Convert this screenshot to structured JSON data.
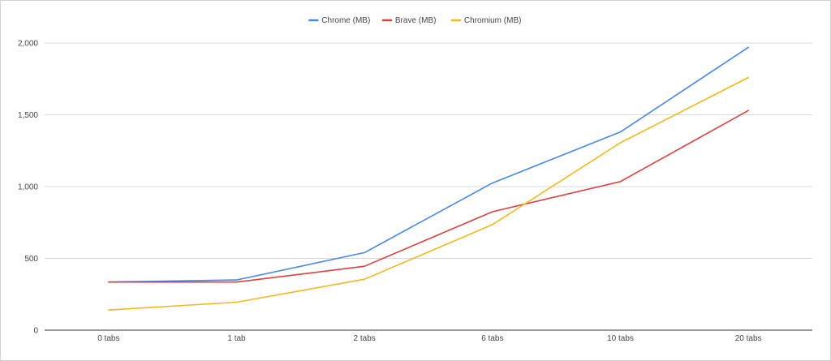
{
  "chart_data": {
    "type": "line",
    "categories": [
      "0 tabs",
      "1 tab",
      "2 tabs",
      "6 tabs",
      "10 tabs",
      "20 tabs"
    ],
    "series": [
      {
        "name": "Chrome (MB)",
        "color": "#4a86e8",
        "values": [
          335,
          350,
          540,
          1025,
          1380,
          1970
        ]
      },
      {
        "name": "Brave (MB)",
        "color": "#d9413f",
        "values": [
          335,
          335,
          445,
          825,
          1035,
          1530
        ]
      },
      {
        "name": "Chromium (MB)",
        "color": "#f2b722",
        "values": [
          140,
          195,
          355,
          735,
          1305,
          1760
        ]
      }
    ],
    "y_ticks": [
      0,
      500,
      1000,
      1500,
      2000
    ],
    "y_tick_labels": [
      "0",
      "500",
      "1,000",
      "1,500",
      "2,000"
    ],
    "ylim": [
      0,
      2000
    ],
    "grid": true,
    "legend_position": "top-center"
  }
}
